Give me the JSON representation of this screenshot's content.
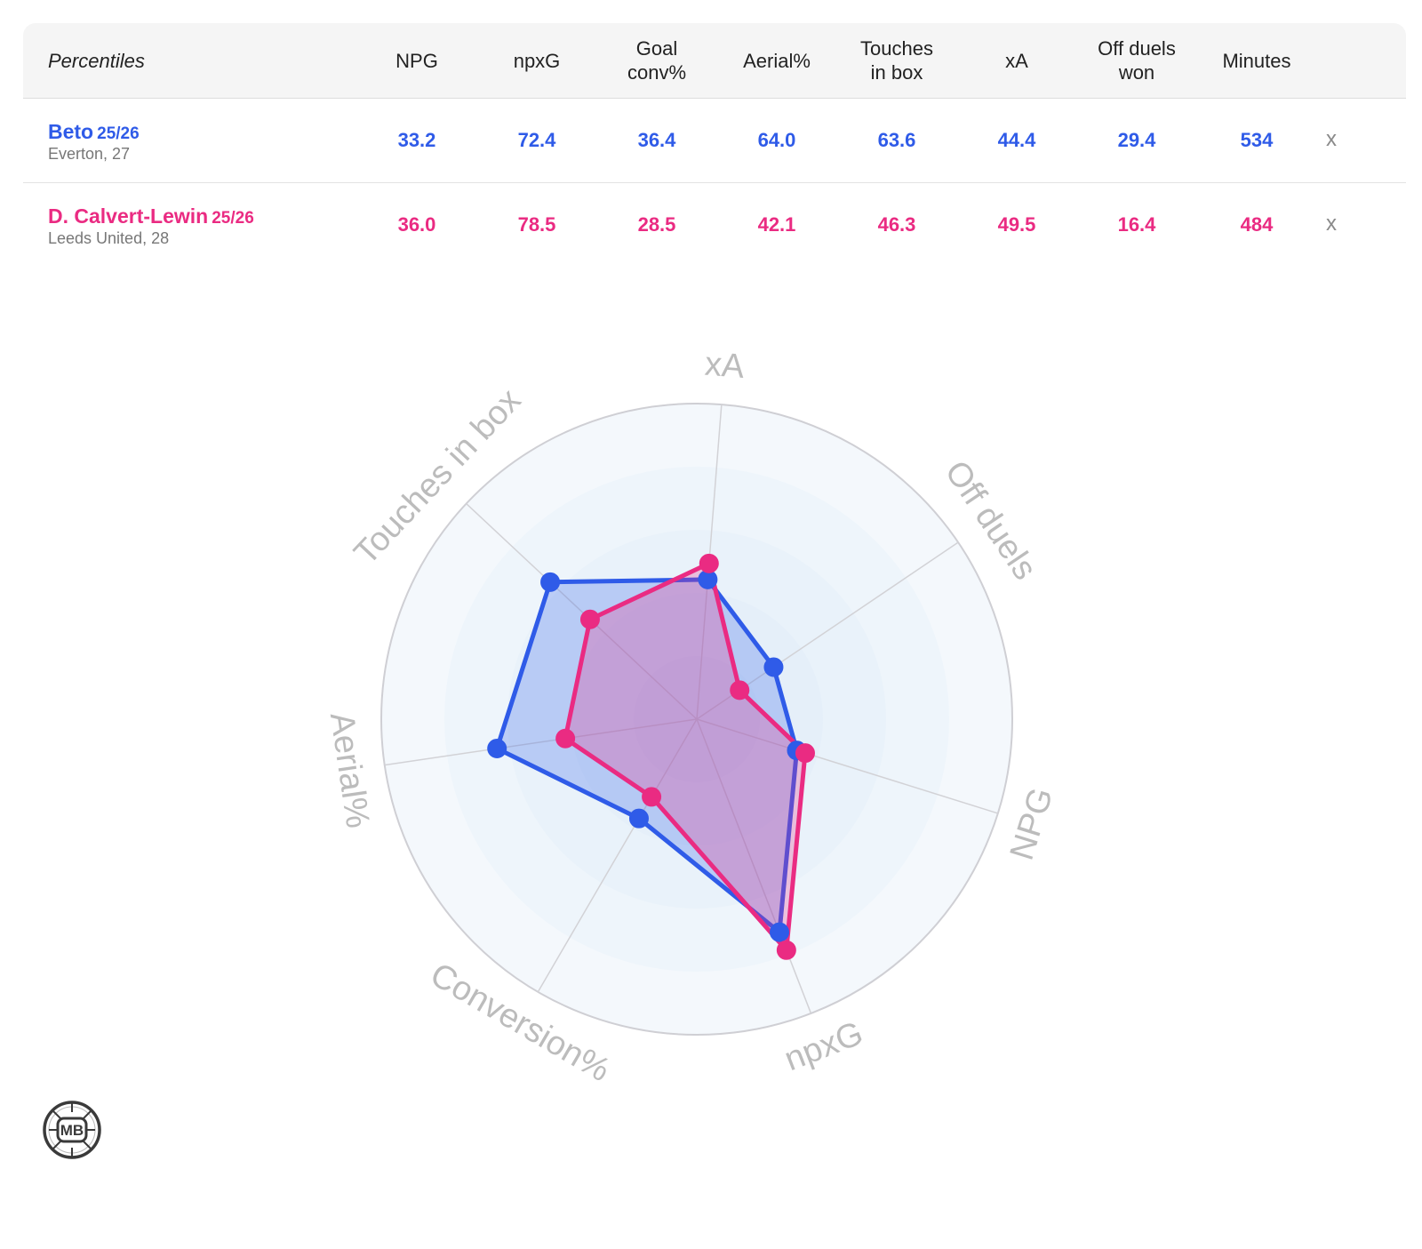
{
  "table": {
    "header_label": "Percentiles",
    "columns": [
      "NPG",
      "npxG",
      "Goal\nconv%",
      "Aerial%",
      "Touches\nin box",
      "xA",
      "Off duels\nwon",
      "Minutes"
    ],
    "remove_label": "x",
    "players": [
      {
        "name": "Beto",
        "season": "25/26",
        "team_age": "Everton, 27",
        "color": "#2f5be8",
        "values": [
          "33.2",
          "72.4",
          "36.4",
          "64.0",
          "63.6",
          "44.4",
          "29.4",
          "534"
        ]
      },
      {
        "name": "D. Calvert-Lewin",
        "season": "25/26",
        "team_age": "Leeds United, 28",
        "color": "#ea2b82",
        "values": [
          "36.0",
          "78.5",
          "28.5",
          "42.1",
          "46.3",
          "49.5",
          "16.4",
          "484"
        ]
      }
    ]
  },
  "chart_data": {
    "type": "radar",
    "axes": [
      "xA",
      "Off duels",
      "NPG",
      "npxG",
      "Conversion%",
      "Aerial%",
      "Touches in box"
    ],
    "range": [
      0,
      100
    ],
    "grid": true,
    "series": [
      {
        "name": "Beto",
        "color": "#2f5be8",
        "values": [
          44.4,
          29.4,
          33.2,
          72.4,
          36.4,
          64.0,
          63.6
        ]
      },
      {
        "name": "D. Calvert-Lewin",
        "color": "#ea2b82",
        "values": [
          49.5,
          16.4,
          36.0,
          78.5,
          28.5,
          42.1,
          46.3
        ]
      }
    ]
  },
  "logo": {
    "text": "MB",
    "icon": "soccer-ball-logo"
  }
}
